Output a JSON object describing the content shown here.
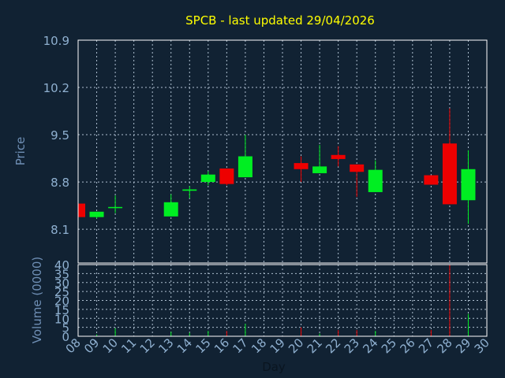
{
  "chart_data": [
    {
      "type": "candlestick",
      "title": "SPCB - last updated 29/04/2026",
      "ylabel": "Price",
      "ylim": [
        7.6,
        10.9
      ],
      "yticks": [
        10.9,
        10.2,
        9.5,
        8.8,
        8.1
      ],
      "ytick_labels": [
        "10.9",
        "10.2",
        "9.5",
        "8.8",
        "8.1"
      ],
      "grid": true,
      "x_categories": [
        "08",
        "09",
        "10",
        "11",
        "12",
        "13",
        "14",
        "15",
        "16",
        "17",
        "18",
        "19",
        "20",
        "21",
        "22",
        "23",
        "24",
        "25",
        "26",
        "27",
        "28",
        "29",
        "30"
      ],
      "candles": [
        {
          "day": "08",
          "open": 8.48,
          "high": 8.48,
          "low": 8.28,
          "close": 8.28
        },
        {
          "day": "09",
          "open": 8.28,
          "high": 8.36,
          "low": 8.26,
          "close": 8.36
        },
        {
          "day": "10",
          "open": 8.42,
          "high": 8.6,
          "low": 8.34,
          "close": 8.43
        },
        {
          "day": "13",
          "open": 8.29,
          "high": 8.62,
          "low": 8.29,
          "close": 8.5
        },
        {
          "day": "14",
          "open": 8.67,
          "high": 8.74,
          "low": 8.56,
          "close": 8.69
        },
        {
          "day": "15",
          "open": 8.8,
          "high": 8.96,
          "low": 8.75,
          "close": 8.91
        },
        {
          "day": "16",
          "open": 9.0,
          "high": 9.0,
          "low": 8.75,
          "close": 8.77
        },
        {
          "day": "17",
          "open": 8.87,
          "high": 9.5,
          "low": 8.87,
          "close": 9.18
        },
        {
          "day": "20",
          "open": 9.08,
          "high": 9.18,
          "low": 8.8,
          "close": 8.99
        },
        {
          "day": "21",
          "open": 8.93,
          "high": 9.35,
          "low": 8.93,
          "close": 9.03
        },
        {
          "day": "22",
          "open": 9.2,
          "high": 9.33,
          "low": 9.03,
          "close": 9.14
        },
        {
          "day": "23",
          "open": 9.06,
          "high": 9.06,
          "low": 8.58,
          "close": 8.95
        },
        {
          "day": "24",
          "open": 8.65,
          "high": 9.12,
          "low": 8.65,
          "close": 8.98
        },
        {
          "day": "27",
          "open": 8.9,
          "high": 8.9,
          "low": 8.76,
          "close": 8.76
        },
        {
          "day": "28",
          "open": 9.37,
          "high": 9.89,
          "low": 8.47,
          "close": 8.47
        },
        {
          "day": "29",
          "open": 8.53,
          "high": 9.27,
          "low": 8.18,
          "close": 8.99
        }
      ]
    },
    {
      "type": "bar",
      "ylabel": "Volume (0000)",
      "xlabel": "Day",
      "ylim": [
        0,
        40
      ],
      "yticks": [
        0,
        5,
        10,
        15,
        20,
        25,
        30,
        35,
        40
      ],
      "ytick_labels": [
        "0",
        "5",
        "10",
        "15",
        "20",
        "25",
        "30",
        "35",
        "40"
      ],
      "grid": true,
      "categories": [
        "08",
        "09",
        "10",
        "11",
        "12",
        "13",
        "14",
        "15",
        "16",
        "17",
        "18",
        "19",
        "20",
        "21",
        "22",
        "23",
        "24",
        "25",
        "26",
        "27",
        "28",
        "29",
        "30"
      ],
      "bars": [
        {
          "day": "08",
          "value": 1,
          "dir": "down"
        },
        {
          "day": "09",
          "value": 1,
          "dir": "up"
        },
        {
          "day": "10",
          "value": 4.5,
          "dir": "up"
        },
        {
          "day": "13",
          "value": 2.5,
          "dir": "up"
        },
        {
          "day": "14",
          "value": 2,
          "dir": "up"
        },
        {
          "day": "15",
          "value": 3,
          "dir": "up"
        },
        {
          "day": "16",
          "value": 3,
          "dir": "down"
        },
        {
          "day": "17",
          "value": 7,
          "dir": "up"
        },
        {
          "day": "20",
          "value": 5,
          "dir": "down"
        },
        {
          "day": "21",
          "value": 1.5,
          "dir": "up"
        },
        {
          "day": "22",
          "value": 3.5,
          "dir": "down"
        },
        {
          "day": "23",
          "value": 3.5,
          "dir": "down"
        },
        {
          "day": "24",
          "value": 3,
          "dir": "up"
        },
        {
          "day": "27",
          "value": 3.5,
          "dir": "down"
        },
        {
          "day": "28",
          "value": 40,
          "dir": "down"
        },
        {
          "day": "29",
          "value": 12.5,
          "dir": "up"
        }
      ]
    }
  ],
  "colors": {
    "background": "#112233",
    "title": "#ffff00",
    "axis_text": "#6f8fb5",
    "tick_text": "#8fb0d0",
    "frame": "#ffffff",
    "grid": "#aebfd0",
    "up": "#00ee22",
    "down": "#ee0000"
  }
}
